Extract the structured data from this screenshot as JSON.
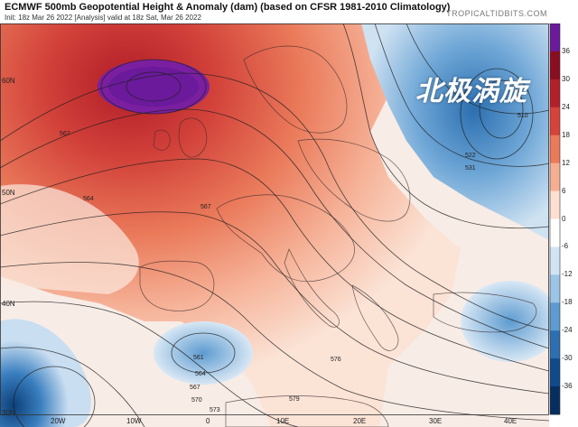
{
  "header": {
    "title": "ECMWF 500mb Geopotential Height & Anomaly (dam) (based on CFSR 1981-2010 Climatology)",
    "subtitle": "Init: 18z Mar 26 2022   [Analysis]   valid at 18z Sat, Mar 26 2022",
    "brand": "TROPICALTIDBITS.COM"
  },
  "overlay_text": "北极涡旋",
  "latitude_labels": [
    "60N",
    "50N",
    "40N",
    "30N"
  ],
  "longitude_labels": [
    "20W",
    "10W",
    "0",
    "10E",
    "20E",
    "30E",
    "40E"
  ],
  "colorbar": {
    "ticks": [
      "36",
      "30",
      "24",
      "18",
      "12",
      "6",
      "0",
      "-6",
      "-12",
      "-18",
      "-24",
      "-30",
      "-36"
    ],
    "colors": [
      "#6a1a9a",
      "#8b0d20",
      "#b3202a",
      "#d5433a",
      "#ea7a5a",
      "#f6ae93",
      "#fde0d2",
      "#ffffff",
      "#d2e4f3",
      "#9cc4e6",
      "#5d9bd0",
      "#2d6fb0",
      "#0f4a8a",
      "#062e5f"
    ]
  },
  "contour_labels": [
    "567",
    "564",
    "567",
    "561",
    "564",
    "567",
    "570",
    "573",
    "576",
    "579",
    "510",
    "522",
    "531"
  ]
}
